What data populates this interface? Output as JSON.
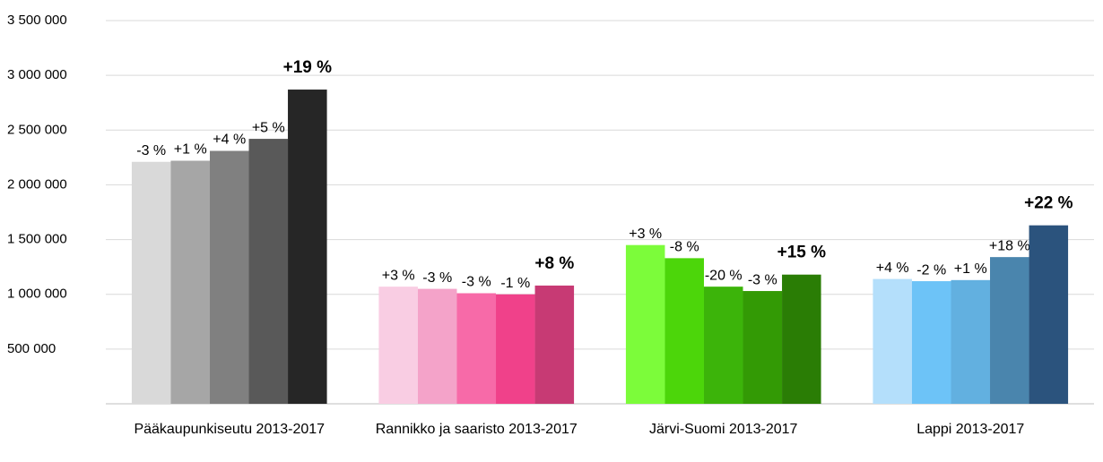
{
  "chart_data": {
    "type": "bar",
    "categories": [
      "Pääkaupunkiseutu 2013-2017",
      "Rannikko ja saaristo 2013-2017",
      "Järvi-Suomi 2013-2017",
      "Lappi 2013-2017"
    ],
    "series": [
      {
        "colors": [
          "#d9d9d9",
          "#f9cde3",
          "#7cfc3a",
          "#b4dffb"
        ],
        "values": [
          2210000,
          1070000,
          1450000,
          1140000
        ],
        "change_labels": [
          "-3 %",
          "+3 %",
          "+3 %",
          "+4 %"
        ]
      },
      {
        "colors": [
          "#a6a6a6",
          "#f4a3c9",
          "#4cd60a",
          "#6dc3f7"
        ],
        "values": [
          2220000,
          1050000,
          1330000,
          1120000
        ],
        "change_labels": [
          "+1 %",
          "-3 %",
          "-8 %",
          "-2 %"
        ]
      },
      {
        "colors": [
          "#808080",
          "#f76aa8",
          "#3cb40a",
          "#62b0e0"
        ],
        "values": [
          2310000,
          1010000,
          1070000,
          1130000
        ],
        "change_labels": [
          "+4 %",
          "-3 %",
          "-20 %",
          "+1 %"
        ]
      },
      {
        "colors": [
          "#595959",
          "#f0418a",
          "#339a05",
          "#4a85ad"
        ],
        "values": [
          2420000,
          1000000,
          1030000,
          1340000
        ],
        "change_labels": [
          "+5 %",
          "-1 %",
          "-3 %",
          "+18 %"
        ]
      },
      {
        "colors": [
          "#262626",
          "#c73a74",
          "#2a7d05",
          "#2b537d"
        ],
        "values": [
          2870000,
          1080000,
          1180000,
          1630000
        ],
        "change_labels": [
          "+19 %",
          "+8 %",
          "+15 %",
          "+22 %"
        ],
        "bold": true
      }
    ],
    "ylim": [
      0,
      3500000
    ],
    "yticks": [
      {
        "value": 500000,
        "label": "500 000"
      },
      {
        "value": 1000000,
        "label": "1 000 000"
      },
      {
        "value": 1500000,
        "label": "1 500 000"
      },
      {
        "value": 2000000,
        "label": "2 000 000"
      },
      {
        "value": 2500000,
        "label": "2 500 000"
      },
      {
        "value": 3000000,
        "label": "3 000 000"
      },
      {
        "value": 3500000,
        "label": "3 500 000"
      }
    ],
    "grid": true
  }
}
